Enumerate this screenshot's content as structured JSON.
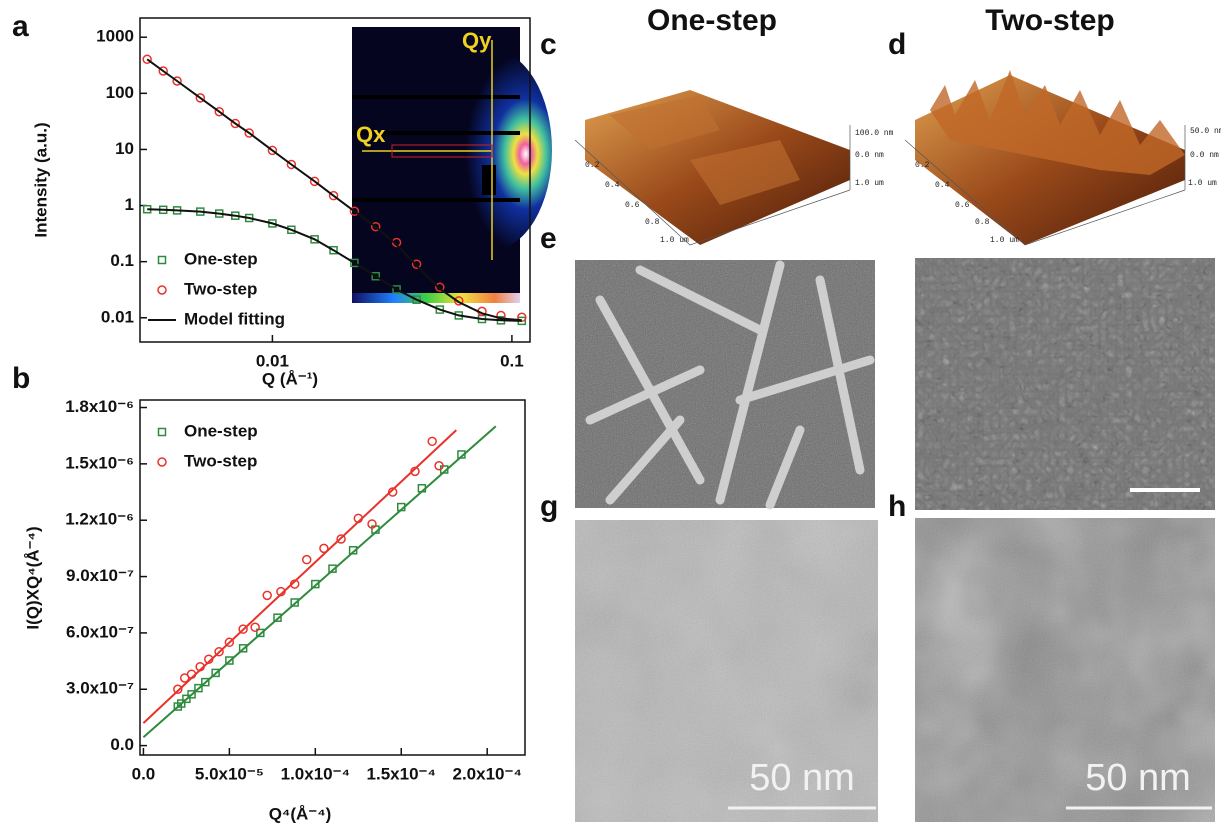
{
  "chart_data": [
    {
      "type": "scatter",
      "xscale": "log",
      "yscale": "log",
      "xlabel": "Q (Å⁻¹)",
      "ylabel": "Intensity (a.u.)",
      "xlim": [
        0.0028,
        0.119
      ],
      "ylim": [
        0.0037,
        2200
      ],
      "xticks": [
        0.01,
        0.1
      ],
      "yticks": [
        0.01,
        0.1,
        1,
        10,
        100,
        1000
      ],
      "legend": "lower left",
      "series": [
        {
          "name": "One-step",
          "color": "#2e8b3e",
          "marker": "square",
          "x": [
            0.003,
            0.0035,
            0.004,
            0.005,
            0.006,
            0.007,
            0.008,
            0.01,
            0.012,
            0.015,
            0.018,
            0.022,
            0.027,
            0.033,
            0.04,
            0.05,
            0.06,
            0.075,
            0.09,
            0.11
          ],
          "values": [
            0.86,
            0.84,
            0.82,
            0.78,
            0.72,
            0.66,
            0.6,
            0.48,
            0.37,
            0.25,
            0.16,
            0.095,
            0.055,
            0.032,
            0.021,
            0.014,
            0.011,
            0.0095,
            0.009,
            0.0088
          ]
        },
        {
          "name": "Two-step",
          "color": "#e8322a",
          "marker": "circle",
          "x": [
            0.003,
            0.0035,
            0.004,
            0.005,
            0.006,
            0.007,
            0.008,
            0.01,
            0.012,
            0.015,
            0.018,
            0.022,
            0.027,
            0.033,
            0.04,
            0.05,
            0.06,
            0.075,
            0.09,
            0.11
          ],
          "values": [
            404,
            250,
            166,
            83,
            47,
            29,
            19.6,
            9.6,
            5.4,
            2.7,
            1.5,
            0.79,
            0.42,
            0.22,
            0.09,
            0.035,
            0.02,
            0.013,
            0.011,
            0.0102
          ]
        },
        {
          "name": "Model fitting",
          "color": "#111111",
          "marker": "line",
          "x": [
            0.003,
            0.0035,
            0.004,
            0.005,
            0.006,
            0.007,
            0.008,
            0.01,
            0.012,
            0.015,
            0.018,
            0.022,
            0.027,
            0.033,
            0.04,
            0.05,
            0.06,
            0.075,
            0.09,
            0.11,
            0.11,
            0.003,
            0.0035,
            0.004,
            0.005,
            0.006,
            0.007,
            0.008,
            0.01,
            0.012,
            0.015,
            0.018,
            0.022,
            0.027,
            0.033,
            0.04,
            0.05,
            0.06,
            0.075,
            0.09,
            0.11
          ],
          "values": [
            0.86,
            0.84,
            0.82,
            0.78,
            0.72,
            0.66,
            0.6,
            0.48,
            0.37,
            0.25,
            0.16,
            0.095,
            0.055,
            0.032,
            0.021,
            0.014,
            0.011,
            0.0095,
            0.009,
            0.0088,
            null,
            404,
            250,
            166,
            83,
            47,
            29,
            19.6,
            9.6,
            5.4,
            2.7,
            1.5,
            0.79,
            0.42,
            0.2,
            0.085,
            0.033,
            0.019,
            0.012,
            0.0098,
            0.009
          ]
        }
      ]
    },
    {
      "type": "scatter",
      "xlabel": "Q⁴(Å⁻⁴)",
      "ylabel": "I(Q)XQ⁴(Å⁻⁴)",
      "xlim": [
        -2e-06,
        0.000222
      ],
      "ylim": [
        -5e-08,
        1.84e-06
      ],
      "xticks": [
        {
          "value": 0,
          "label": "0.0"
        },
        {
          "value": 5e-05,
          "label": "5.0x10⁻⁵"
        },
        {
          "value": 0.0001,
          "label": "1.0x10⁻⁴"
        },
        {
          "value": 0.00015,
          "label": "1.5x10⁻⁴"
        },
        {
          "value": 0.0002,
          "label": "2.0x10⁻⁴"
        }
      ],
      "yticks": [
        {
          "value": 0,
          "label": "0.0"
        },
        {
          "value": 3e-07,
          "label": "3.0x10⁻⁷"
        },
        {
          "value": 6e-07,
          "label": "6.0x10⁻⁷"
        },
        {
          "value": 9e-07,
          "label": "9.0x10⁻⁷"
        },
        {
          "value": 1.2e-06,
          "label": "1.2x10⁻⁶"
        },
        {
          "value": 1.5e-06,
          "label": "1.5x10⁻⁶"
        },
        {
          "value": 1.8e-06,
          "label": "1.8x10⁻⁶"
        }
      ],
      "legend": "upper left",
      "series": [
        {
          "name": "One-step",
          "color": "#2e8b3e",
          "marker": "square",
          "x": [
            2e-05,
            2.2e-05,
            2.5e-05,
            2.8e-05,
            3.2e-05,
            3.6e-05,
            4.2e-05,
            5e-05,
            5.8e-05,
            6.8e-05,
            7.8e-05,
            8.8e-05,
            0.0001,
            0.00011,
            0.000122,
            0.000135,
            0.00015,
            0.000162,
            0.000175,
            0.000185
          ],
          "values": [
            2.08e-07,
            2.24e-07,
            2.49e-07,
            2.73e-07,
            3.06e-07,
            3.38e-07,
            3.87e-07,
            4.53e-07,
            5.18e-07,
            6e-07,
            6.81e-07,
            7.62e-07,
            8.6e-07,
            9.42e-07,
            1.04e-06,
            1.15e-06,
            1.27e-06,
            1.37e-06,
            1.47e-06,
            1.55e-06
          ]
        },
        {
          "name": "Two-step",
          "color": "#e8322a",
          "marker": "circle",
          "x": [
            2e-05,
            2.4e-05,
            2.8e-05,
            3.3e-05,
            3.8e-05,
            4.4e-05,
            5e-05,
            5.8e-05,
            6.5e-05,
            7.2e-05,
            8e-05,
            8.8e-05,
            9.5e-05,
            0.000105,
            0.000115,
            0.000125,
            0.000133,
            0.000145,
            0.000158,
            0.000168,
            0.000172
          ],
          "values": [
            3e-07,
            3.6e-07,
            3.8e-07,
            4.2e-07,
            4.6e-07,
            5e-07,
            5.5e-07,
            6.2e-07,
            6.3e-07,
            8e-07,
            8.2e-07,
            8.6e-07,
            9.9e-07,
            1.05e-06,
            1.1e-06,
            1.21e-06,
            1.18e-06,
            1.35e-06,
            1.46e-06,
            1.62e-06,
            1.49e-06
          ]
        },
        {
          "color": "#2e8b3e",
          "marker": "line",
          "x": [
            0,
            0.000205
          ],
          "values": [
            4.5e-08,
            1.7e-06
          ]
        },
        {
          "color": "#e8322a",
          "marker": "line",
          "x": [
            0,
            0.000182
          ],
          "values": [
            1.2e-07,
            1.68e-06
          ]
        }
      ]
    }
  ],
  "panels": {
    "letters": [
      "a",
      "b",
      "c",
      "d",
      "e",
      "g",
      "h"
    ],
    "inset": {
      "qy": "Qy",
      "qx": "Qx"
    },
    "headers": [
      "One-step",
      "Two-step"
    ],
    "afm_c": [
      "100.0 nm",
      "0.0 nm",
      "1.0 um",
      "0.2",
      "0.4",
      "0.6",
      "0.8",
      "1.0 um"
    ],
    "afm_d": [
      "50.0 nm",
      "0.0 nm",
      "1.0 um",
      "0.2",
      "0.4",
      "0.6",
      "0.8",
      "1.0 um"
    ],
    "scale_g": "50 nm",
    "scale_h": "50 nm"
  }
}
